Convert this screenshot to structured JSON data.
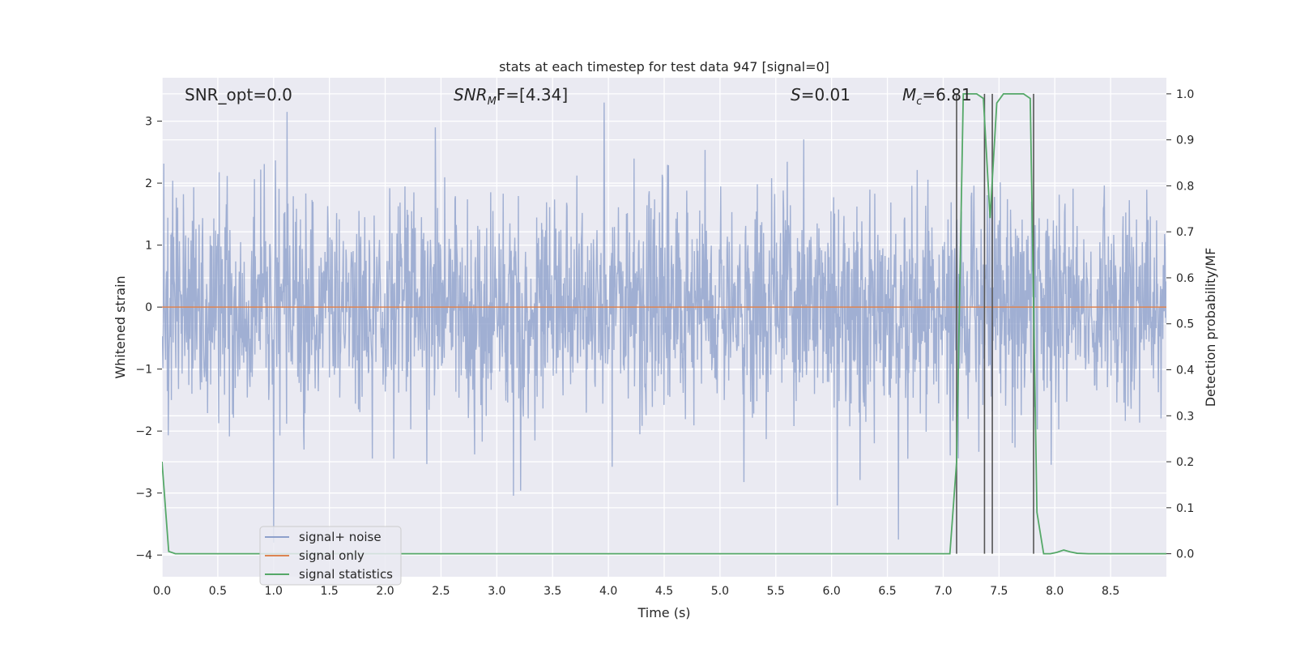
{
  "chart_data": {
    "type": "line",
    "title": "stats at each timestep for test data 947 [signal=0]",
    "xlabel": "Time (s)",
    "ylabel_left": "Whitened strain",
    "ylabel_right": "Detection probability/MF",
    "xlim": [
      0.0,
      9.0
    ],
    "ylim_left": [
      -4.35,
      3.7
    ],
    "ylim_right": [
      -0.05,
      1.035
    ],
    "x_ticks": [
      "0.0",
      "0.5",
      "1.0",
      "1.5",
      "2.0",
      "2.5",
      "3.0",
      "3.5",
      "4.0",
      "4.5",
      "5.0",
      "5.5",
      "6.0",
      "6.5",
      "7.0",
      "7.5",
      "8.0",
      "8.5"
    ],
    "y_ticks_left": [
      "−4",
      "−3",
      "−2",
      "−1",
      "0",
      "1",
      "2",
      "3"
    ],
    "y_ticks_right": [
      "0.0",
      "0.1",
      "0.2",
      "0.3",
      "0.4",
      "0.5",
      "0.6",
      "0.7",
      "0.8",
      "0.9",
      "1.0"
    ],
    "grid": true,
    "legend_position": "lower-left",
    "annotations": {
      "snr_opt": "SNR_opt=0.0",
      "snr_mf_main": "SNR",
      "snr_mf_sub": "M",
      "snr_mf_rest": "F=[4.34]",
      "s_main": "S",
      "s_rest": "=0.01",
      "mc_main": "M",
      "mc_sub": "c",
      "mc_rest": "=6.81"
    },
    "series": [
      {
        "name": "signal+ noise",
        "color": "#8da0cb",
        "description_values": {
          "sample_rate_points": 2250,
          "approx_std": 0.9,
          "min": -3.8,
          "max": 3.35
        },
        "peaks": [
          [
            1.0,
            -3.8
          ],
          [
            3.96,
            3.3
          ],
          [
            6.6,
            -3.75
          ],
          [
            1.12,
            3.15
          ],
          [
            2.45,
            2.9
          ],
          [
            6.05,
            -3.2
          ]
        ]
      },
      {
        "name": "signal only",
        "color": "#dd8452",
        "x": [
          0.0,
          9.0
        ],
        "y": [
          0.0,
          0.0
        ]
      },
      {
        "name": "signal statistics",
        "color": "#55a868",
        "x": [
          0.0,
          0.06,
          0.12,
          0.5,
          1.0,
          2.0,
          3.0,
          4.0,
          5.0,
          6.0,
          7.0,
          7.06,
          7.12,
          7.18,
          7.24,
          7.3,
          7.36,
          7.42,
          7.48,
          7.54,
          7.6,
          7.66,
          7.72,
          7.78,
          7.84,
          7.9,
          7.96,
          8.02,
          8.08,
          8.14,
          8.2,
          8.3,
          8.5,
          9.0
        ],
        "y": [
          0.2,
          0.005,
          0.0,
          0.0,
          0.0,
          0.0,
          0.0,
          0.0,
          0.0,
          0.0,
          0.0,
          0.0,
          0.2,
          1.0,
          1.0,
          1.0,
          0.99,
          0.73,
          0.98,
          1.0,
          1.0,
          1.0,
          1.0,
          0.99,
          0.09,
          0.0,
          0.0,
          0.003,
          0.008,
          0.004,
          0.001,
          0.0,
          0.0,
          0.0
        ]
      }
    ],
    "vertical_markers_s": [
      7.12,
      7.37,
      7.44,
      7.81
    ]
  }
}
